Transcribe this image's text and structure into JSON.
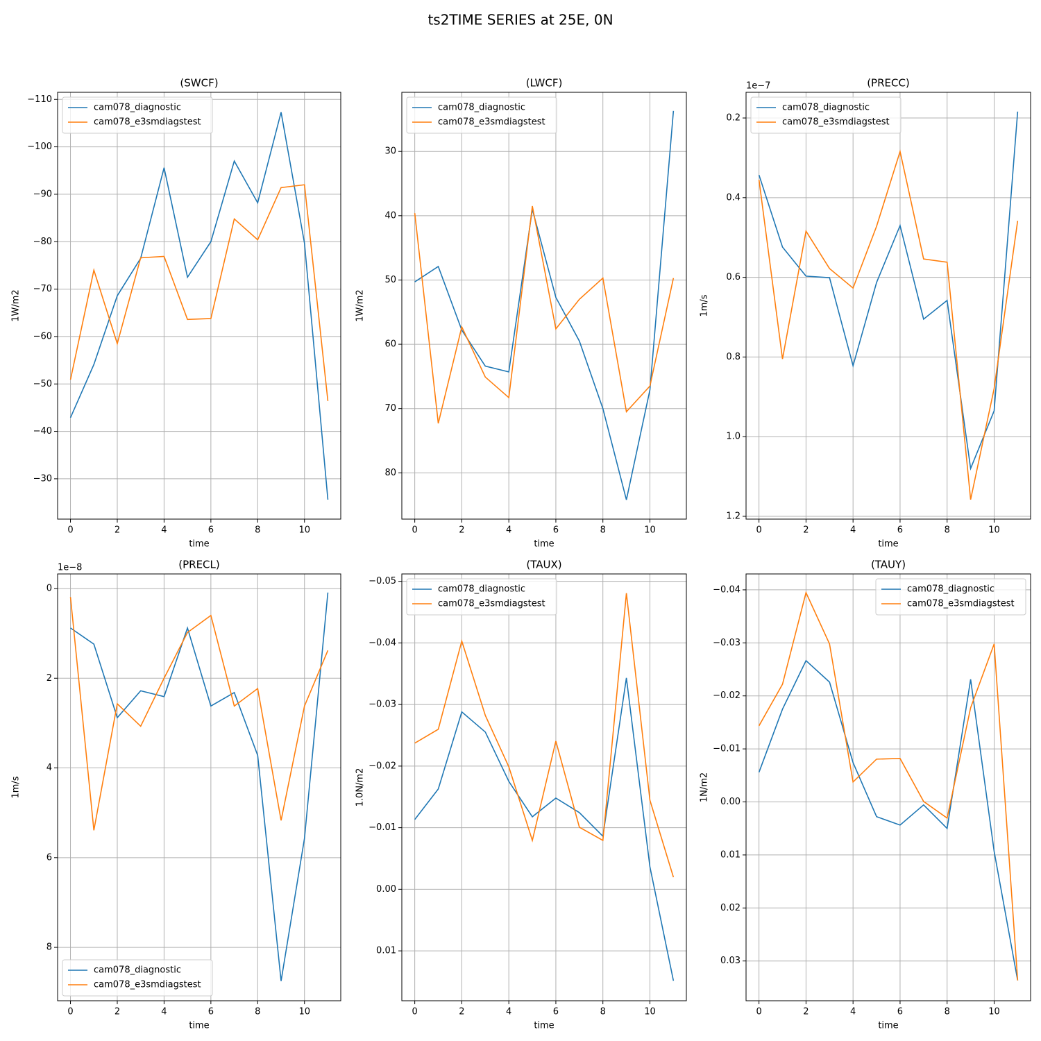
{
  "title": "ts2TIME SERIES at 25E, 0N",
  "chart_data": [
    {
      "type": "line",
      "title": "(SWCF)",
      "xlabel": "time",
      "ylabel": "1W/m2",
      "grid": true,
      "legend": "upper left",
      "x": [
        0,
        1,
        2,
        3,
        4,
        5,
        6,
        7,
        8,
        9,
        10,
        11
      ],
      "xlim": [
        -0.55,
        11.55
      ],
      "xticks": [
        0,
        2,
        4,
        6,
        8,
        10
      ],
      "ylim": [
        -21.5,
        -111.5
      ],
      "yticks": [
        {
          "value": -110,
          "label": "−110"
        },
        {
          "value": -100,
          "label": "−100"
        },
        {
          "value": -90,
          "label": "−90"
        },
        {
          "value": -80,
          "label": "−80"
        },
        {
          "value": -70,
          "label": "−70"
        },
        {
          "value": -60,
          "label": "−60"
        },
        {
          "value": -50,
          "label": "−50"
        },
        {
          "value": -40,
          "label": "−40"
        },
        {
          "value": -30,
          "label": "−30"
        }
      ],
      "series": [
        {
          "name": "cam078_diagnostic",
          "color": "#1f77b4",
          "values": [
            -42.9,
            -54.1,
            -68.6,
            -76.5,
            -95.6,
            -72.5,
            -80.0,
            -97.0,
            -88.2,
            -107.3,
            -79.7,
            -25.6
          ]
        },
        {
          "name": "cam078_e3smdiagstest",
          "color": "#ff7f0e",
          "values": [
            -50.9,
            -74.0,
            -58.5,
            -76.6,
            -76.9,
            -63.6,
            -63.8,
            -84.8,
            -80.4,
            -91.4,
            -92.0,
            -46.4
          ]
        }
      ]
    },
    {
      "type": "line",
      "title": "(LWCF)",
      "xlabel": "time",
      "ylabel": "1W/m2",
      "grid": true,
      "legend": "upper left",
      "x": [
        0,
        1,
        2,
        3,
        4,
        5,
        6,
        7,
        8,
        9,
        10,
        11
      ],
      "xlim": [
        -0.55,
        11.55
      ],
      "xticks": [
        0,
        2,
        4,
        6,
        8,
        10
      ],
      "ylim": [
        87.2,
        20.8
      ],
      "yticks": [
        30,
        40,
        50,
        60,
        70,
        80
      ],
      "series": [
        {
          "name": "cam078_diagnostic",
          "color": "#1f77b4",
          "values": [
            50.3,
            47.9,
            57.8,
            63.4,
            64.3,
            39.0,
            52.7,
            59.5,
            70.0,
            84.2,
            67.1,
            23.7
          ]
        },
        {
          "name": "cam078_e3smdiagstest",
          "color": "#ff7f0e",
          "values": [
            39.6,
            72.3,
            57.3,
            65.1,
            68.3,
            38.5,
            57.6,
            53.0,
            49.7,
            70.5,
            66.5,
            49.7
          ]
        }
      ]
    },
    {
      "type": "line",
      "title": "(PRECC)",
      "xlabel": "time",
      "ylabel": "1m/s",
      "offset_text": "1e−7",
      "grid": true,
      "legend": "upper left",
      "x": [
        0,
        1,
        2,
        3,
        4,
        5,
        6,
        7,
        8,
        9,
        10,
        11
      ],
      "xlim": [
        -0.55,
        11.55
      ],
      "xticks": [
        0,
        2,
        4,
        6,
        8,
        10
      ],
      "ylim": [
        1.207,
        0.1355
      ],
      "yticks": [
        0.2,
        0.4,
        0.6,
        0.8,
        {
          "value": 1,
          "label": "1.0"
        },
        1.2
      ],
      "series": [
        {
          "name": "cam078_diagnostic",
          "color": "#1f77b4",
          "values": [
            0.343,
            0.524,
            0.597,
            0.601,
            0.822,
            0.613,
            0.47,
            0.705,
            0.658,
            1.08,
            0.935,
            0.184
          ]
        },
        {
          "name": "cam078_e3smdiagstest",
          "color": "#ff7f0e",
          "values": [
            0.355,
            0.805,
            0.484,
            0.578,
            0.627,
            0.472,
            0.284,
            0.554,
            0.562,
            1.158,
            0.879,
            0.458
          ]
        }
      ]
    },
    {
      "type": "line",
      "title": "(PRECL)",
      "xlabel": "time",
      "ylabel": "1m/s",
      "offset_text": "1e−8",
      "grid": true,
      "legend": "lower left",
      "x": [
        0,
        1,
        2,
        3,
        4,
        5,
        6,
        7,
        8,
        9,
        10,
        11
      ],
      "xlim": [
        -0.55,
        11.55
      ],
      "xticks": [
        0,
        2,
        4,
        6,
        8,
        10
      ],
      "ylim": [
        9.19,
        -0.325
      ],
      "yticks": [
        0,
        2,
        4,
        6,
        8
      ],
      "series": [
        {
          "name": "cam078_diagnostic",
          "color": "#1f77b4",
          "values": [
            0.88,
            1.24,
            2.88,
            2.28,
            2.41,
            0.88,
            2.62,
            2.32,
            3.72,
            8.75,
            5.57,
            0.09
          ]
        },
        {
          "name": "cam078_e3smdiagstest",
          "color": "#ff7f0e",
          "values": [
            0.19,
            5.39,
            2.57,
            3.07,
            2.0,
            0.98,
            0.6,
            2.62,
            2.23,
            5.17,
            2.62,
            1.38
          ]
        }
      ]
    },
    {
      "type": "line",
      "title": "(TAUX)",
      "xlabel": "time",
      "ylabel": "1.0N/m2",
      "grid": true,
      "legend": "upper left",
      "x": [
        0,
        1,
        2,
        3,
        4,
        5,
        6,
        7,
        8,
        9,
        10,
        11
      ],
      "xlim": [
        -0.55,
        11.55
      ],
      "xticks": [
        0,
        2,
        4,
        6,
        8,
        10
      ],
      "ylim": [
        0.0181,
        -0.0512
      ],
      "yticks": [
        {
          "value": -0.05,
          "label": "−0.05"
        },
        {
          "value": -0.04,
          "label": "−0.04"
        },
        {
          "value": -0.03,
          "label": "−0.03"
        },
        {
          "value": -0.02,
          "label": "−0.02"
        },
        {
          "value": -0.01,
          "label": "−0.01"
        },
        {
          "value": 0,
          "label": "0.00"
        },
        0.01
      ],
      "series": [
        {
          "name": "cam078_diagnostic",
          "color": "#1f77b4",
          "values": [
            -0.01132,
            -0.01628,
            -0.0288,
            -0.02553,
            -0.01752,
            -0.01177,
            -0.01481,
            -0.01245,
            -0.00861,
            -0.03432,
            -0.00365,
            0.01485
          ]
        },
        {
          "name": "cam078_e3smdiagstest",
          "color": "#ff7f0e",
          "values": [
            -0.02372,
            -0.02598,
            -0.0403,
            -0.02823,
            -0.01989,
            -0.00793,
            -0.02406,
            -0.01008,
            -0.00793,
            -0.04808,
            -0.01447,
            -0.00196
          ]
        }
      ]
    },
    {
      "type": "line",
      "title": "(TAUY)",
      "xlabel": "time",
      "ylabel": "1N/m2",
      "grid": true,
      "legend": "upper right",
      "x": [
        0,
        1,
        2,
        3,
        4,
        5,
        6,
        7,
        8,
        9,
        10,
        11
      ],
      "xlim": [
        -0.55,
        11.55
      ],
      "xticks": [
        0,
        2,
        4,
        6,
        8,
        10
      ],
      "ylim": [
        0.0375,
        -0.043
      ],
      "yticks": [
        {
          "value": -0.04,
          "label": "−0.04"
        },
        {
          "value": -0.03,
          "label": "−0.03"
        },
        {
          "value": -0.02,
          "label": "−0.02"
        },
        {
          "value": -0.01,
          "label": "−0.01"
        },
        {
          "value": 0,
          "label": "0.00"
        },
        0.01,
        0.02,
        0.03
      ],
      "series": [
        {
          "name": "cam078_diagnostic",
          "color": "#1f77b4",
          "values": [
            -0.00559,
            -0.0175,
            -0.02665,
            -0.0226,
            -0.00742,
            0.00278,
            0.00436,
            0.00056,
            0.005,
            -0.02312,
            0.00933,
            0.03366
          ]
        },
        {
          "name": "cam078_e3smdiagstest",
          "color": "#ff7f0e",
          "values": [
            -0.01436,
            -0.0222,
            -0.03948,
            -0.0298,
            -0.00376,
            -0.00807,
            -0.0082,
            -9e-05,
            0.00305,
            -0.01776,
            -0.0298,
            0.03366
          ]
        }
      ]
    }
  ]
}
